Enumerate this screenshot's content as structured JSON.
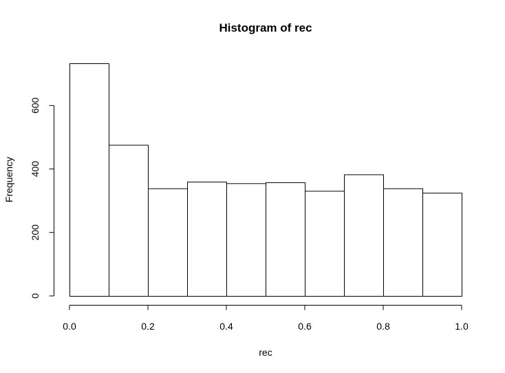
{
  "chart_data": {
    "type": "bar",
    "title": "Histogram of rec",
    "xlabel": "rec",
    "ylabel": "Frequency",
    "bin_edges": [
      0.0,
      0.1,
      0.2,
      0.3,
      0.4,
      0.5,
      0.6,
      0.7,
      0.8,
      0.9,
      1.0
    ],
    "values": [
      733,
      476,
      339,
      360,
      355,
      358,
      331,
      383,
      339,
      325
    ],
    "xlim": [
      0.0,
      1.0
    ],
    "ylim": [
      0,
      760
    ],
    "x_ticks": [
      0.0,
      0.2,
      0.4,
      0.6,
      0.8,
      1.0
    ],
    "x_tick_labels": [
      "0.0",
      "0.2",
      "0.4",
      "0.6",
      "0.8",
      "1.0"
    ],
    "y_ticks": [
      0,
      200,
      400,
      600
    ],
    "y_tick_labels": [
      "0",
      "200",
      "400",
      "600"
    ],
    "grid": false,
    "legend": "none"
  }
}
